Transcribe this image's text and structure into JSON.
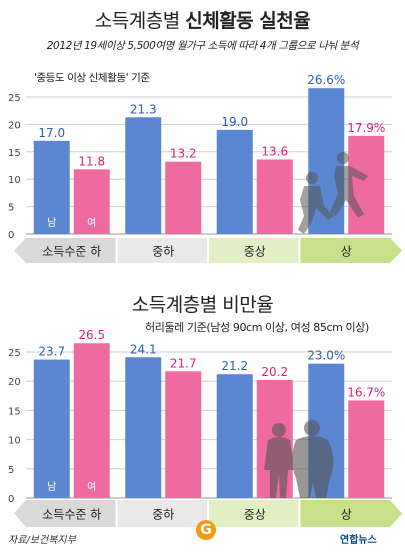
{
  "chart_data": [
    {
      "type": "bar",
      "title_plain": "소득계층별",
      "title_bold": "신체활동 실천율",
      "subtitle": "2012년 19세이상 5,500여명 월가구 소득에 따라 4개 그룹으로 나눠 분석",
      "note": "'중등도 이상 신체활동' 기준",
      "categories": [
        "소득수준 하",
        "중하",
        "중상",
        "상"
      ],
      "series": [
        {
          "name": "남",
          "values": [
            17.0,
            21.3,
            19.0,
            26.6
          ],
          "labels": [
            "17.0",
            "21.3",
            "19.0",
            "26.6%"
          ],
          "color": "#5b86d1"
        },
        {
          "name": "여",
          "values": [
            11.8,
            13.2,
            13.6,
            17.9
          ],
          "labels": [
            "11.8",
            "13.2",
            "13.6",
            "17.9%"
          ],
          "color": "#ee6aa0"
        }
      ],
      "ylim": [
        0,
        25
      ],
      "yticks": [
        "0",
        "5",
        "10",
        "15",
        "20",
        "25"
      ],
      "grid": true
    },
    {
      "type": "bar",
      "title": "소득계층별 비만율",
      "subtitle": "허리둘레 기준(남성 90cm 이상, 여성 85cm 이상)",
      "categories": [
        "소득수준 하",
        "중하",
        "중상",
        "상"
      ],
      "series": [
        {
          "name": "남",
          "values": [
            23.7,
            24.1,
            21.2,
            23.0
          ],
          "labels": [
            "23.7",
            "24.1",
            "21.2",
            "23.0%"
          ],
          "color": "#5b86d1"
        },
        {
          "name": "여",
          "values": [
            26.5,
            21.7,
            20.2,
            16.7
          ],
          "labels": [
            "26.5",
            "21.7",
            "20.2",
            "16.7%"
          ],
          "color": "#ee6aa0"
        }
      ],
      "ylim": [
        0,
        25
      ],
      "yticks": [
        "0",
        "5",
        "10",
        "15",
        "20",
        "25"
      ],
      "grid": true
    }
  ],
  "source": "자료/보건복지부",
  "brand": {
    "g_mark": "G",
    "yonhap": "연합뉴스"
  },
  "colors": {
    "male": "#5b86d1",
    "female": "#ee6aa0",
    "male_label": "#2b5fb8",
    "female_label": "#d6247c",
    "band_gray": "#d9d9d9",
    "band_light_green": "#e2efc4",
    "band_green": "#c6e08c"
  }
}
